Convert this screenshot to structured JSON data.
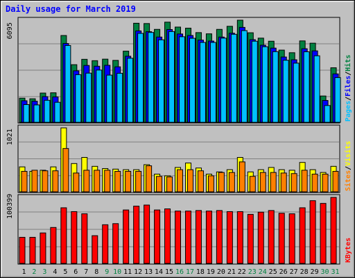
{
  "chart_data": {
    "type": "bar",
    "title": "Daily usage for March 2019",
    "categories": [
      "1",
      "2",
      "3",
      "4",
      "5",
      "6",
      "7",
      "8",
      "9",
      "10",
      "11",
      "12",
      "13",
      "14",
      "15",
      "16",
      "17",
      "18",
      "19",
      "20",
      "21",
      "22",
      "23",
      "24",
      "25",
      "26",
      "27",
      "28",
      "29",
      "30",
      "31"
    ],
    "weekend_color": "#008040",
    "weekday_color": "#000000",
    "weekend_days": [
      "2",
      "3",
      "9",
      "10",
      "16",
      "17",
      "23",
      "24",
      "30",
      "31"
    ],
    "panels": [
      {
        "id": "hits",
        "ytick_label": "6095",
        "ytick_value": 6095,
        "ymax": 6700,
        "legend": [
          {
            "text": "Pages",
            "color": "#00c0ff"
          },
          {
            "text": "Files",
            "color": "#0000ff"
          },
          {
            "text": "Hits",
            "color": "#008040"
          }
        ],
        "series": [
          {
            "name": "Hits",
            "color": "#008040",
            "values": [
              1620,
              1580,
              1950,
              1970,
              5700,
              3800,
              4150,
              4060,
              4160,
              4080,
              4680,
              6500,
              6480,
              6100,
              6570,
              6250,
              6180,
              5890,
              5810,
              6100,
              6300,
              6700,
              5880,
              5530,
              5330,
              4750,
              4580,
              5350,
              5200,
              1760,
              3600
            ]
          },
          {
            "name": "Files",
            "color": "#0000ff",
            "values": [
              1450,
              1420,
              1720,
              1700,
              5180,
              3400,
              3750,
              3700,
              3760,
              3660,
              4350,
              6000,
              5950,
              5600,
              6090,
              5800,
              5700,
              5400,
              5340,
              5600,
              5850,
              6230,
              5430,
              5070,
              4880,
              4300,
              4120,
              4840,
              4700,
              1470,
              3200
            ]
          },
          {
            "name": "Pages",
            "color": "#00c0ff",
            "values": [
              1200,
              1180,
              1480,
              1350,
              5050,
              3150,
              3250,
              3450,
              3120,
              3240,
              4220,
              5840,
              5900,
              5420,
              5960,
              5620,
              5520,
              5250,
              5250,
              5530,
              5780,
              6020,
              5330,
              4970,
              4650,
              4090,
              3900,
              4640,
              4380,
              1140,
              2960
            ]
          }
        ]
      },
      {
        "id": "visits",
        "ytick_label": "1021",
        "ytick_value": 1021,
        "ymax": 1160,
        "legend": [
          {
            "text": "Sites",
            "color": "#ff8000"
          },
          {
            "text": "Visits",
            "color": "#ffff00"
          }
        ],
        "series": [
          {
            "name": "Visits",
            "color": "#ffff00",
            "values": [
              460,
              380,
              400,
              460,
              1160,
              520,
              630,
              470,
              430,
              420,
              410,
              410,
              500,
              330,
              300,
              450,
              530,
              440,
              330,
              370,
              410,
              630,
              370,
              410,
              450,
              410,
              400,
              540,
              410,
              360,
              470
            ]
          },
          {
            "name": "Sites",
            "color": "#ff8000",
            "values": [
              380,
              400,
              390,
              390,
              790,
              350,
              400,
              400,
              400,
              380,
              380,
              380,
              480,
              290,
              280,
              410,
              410,
              390,
              300,
              360,
              360,
              550,
              290,
              360,
              360,
              350,
              340,
              400,
              330,
              330,
              380
            ]
          }
        ]
      },
      {
        "id": "kbytes",
        "ytick_label": "100399",
        "ytick_value": 100399,
        "ymax": 122000,
        "legend": [
          {
            "text": "KBytes",
            "color": "#ff0000"
          }
        ],
        "series": [
          {
            "name": "KBytes",
            "color": "#ff0000",
            "values": [
              49000,
              49000,
              57000,
              67000,
              103000,
              96000,
              92000,
              52000,
              72000,
              74000,
              99000,
              106000,
              108000,
              99000,
              101000,
              97000,
              97000,
              98000,
              97000,
              98000,
              96000,
              96000,
              91000,
              95000,
              98000,
              93000,
              92000,
              103000,
              116000,
              111000,
              122000
            ]
          }
        ]
      }
    ],
    "colors": {
      "background": "#c0c0c0",
      "plot_bg": "#c0c0c0",
      "grid": "#808080",
      "title": "#0000ff"
    }
  }
}
